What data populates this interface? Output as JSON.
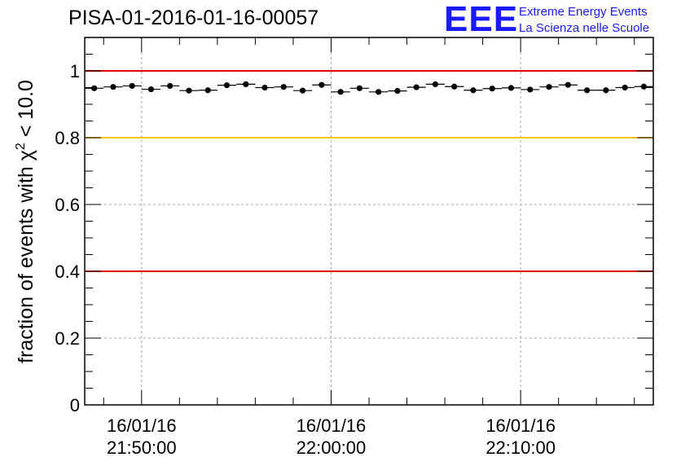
{
  "header": {
    "title": "PISA-01-2016-01-16-00057",
    "logo_mark": "EEE",
    "logo_line1": "Extreme Energy Events",
    "logo_line2": "La Scienza nelle Scuole"
  },
  "chart_data": {
    "type": "scatter",
    "title": "PISA-01-2016-01-16-00057",
    "ylabel_main": "fraction of events with ",
    "ylabel_symbol": "χ",
    "ylabel_sup": "2",
    "ylabel_tail": " < 10.0",
    "xlabel": "",
    "ylim": [
      0,
      1.1
    ],
    "xlim_minutes": [
      -9.0,
      21.0
    ],
    "yticks": [
      {
        "value": 0,
        "label": "0"
      },
      {
        "value": 0.2,
        "label": "0.2"
      },
      {
        "value": 0.4,
        "label": "0.4"
      },
      {
        "value": 0.6,
        "label": "0.6"
      },
      {
        "value": 0.8,
        "label": "0.8"
      },
      {
        "value": 1.0,
        "label": "1"
      }
    ],
    "xticks": [
      {
        "minutes": -6.0,
        "date": "16/01/16",
        "time": "21:50:00"
      },
      {
        "minutes": 4.0,
        "date": "16/01/16",
        "time": "22:00:00"
      },
      {
        "minutes": 14.0,
        "date": "16/01/16",
        "time": "22:10:00"
      }
    ],
    "reference_lines": [
      {
        "y": 1.0,
        "color": "#e00000"
      },
      {
        "y": 0.8,
        "color": "#ffc000"
      },
      {
        "y": 0.4,
        "color": "#e00000"
      }
    ],
    "grid": true,
    "bin_width_minutes": 1.0,
    "series": [
      {
        "x_minutes": [
          -8.5,
          -7.5,
          -6.5,
          -5.5,
          -4.5,
          -3.5,
          -2.5,
          -1.5,
          -0.5,
          0.5,
          1.5,
          2.5,
          3.5,
          4.5,
          5.5,
          6.5,
          7.5,
          8.5,
          9.5,
          10.5,
          11.5,
          12.5,
          13.5,
          14.5,
          15.5,
          16.5,
          17.5,
          18.5,
          19.5,
          20.5
        ],
        "values": [
          0.948,
          0.952,
          0.955,
          0.945,
          0.955,
          0.941,
          0.942,
          0.957,
          0.96,
          0.95,
          0.952,
          0.941,
          0.958,
          0.937,
          0.948,
          0.937,
          0.94,
          0.951,
          0.96,
          0.953,
          0.942,
          0.947,
          0.949,
          0.944,
          0.952,
          0.958,
          0.942,
          0.942,
          0.95,
          0.953
        ],
        "color": "#000000"
      }
    ]
  }
}
